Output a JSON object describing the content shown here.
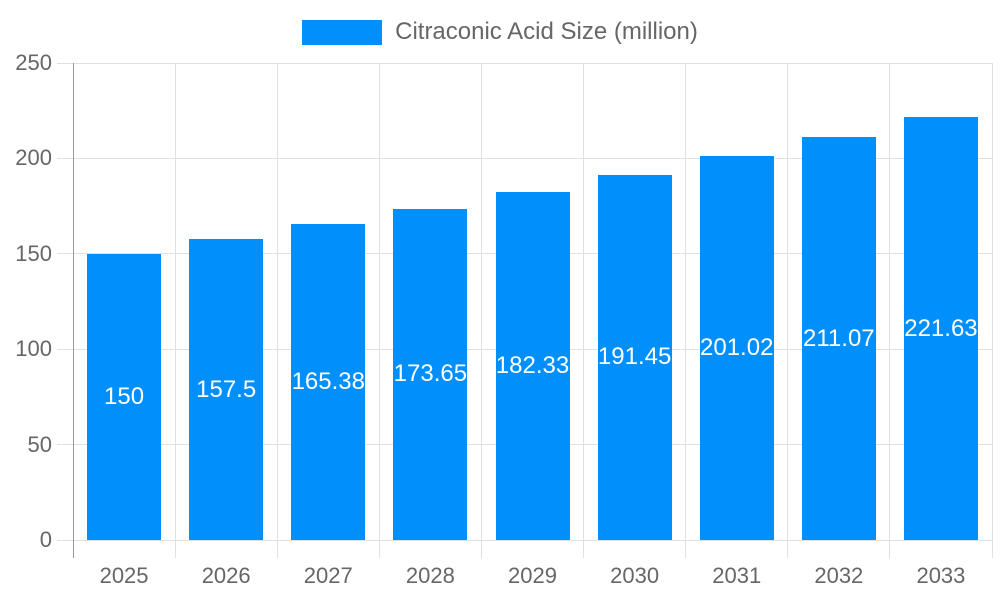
{
  "legend": {
    "label": "Citraconic Acid Size (million)"
  },
  "chart_data": {
    "type": "bar",
    "title": "",
    "categories": [
      "2025",
      "2026",
      "2027",
      "2028",
      "2029",
      "2030",
      "2031",
      "2032",
      "2033"
    ],
    "series": [
      {
        "name": "Citraconic Acid Size (million)",
        "values": [
          150,
          157.5,
          165.38,
          173.65,
          182.33,
          191.45,
          201.02,
          211.07,
          221.63
        ]
      }
    ],
    "data_labels": [
      "150",
      "157.5",
      "165.38",
      "173.65",
      "182.33",
      "191.45",
      "201.02",
      "211.07",
      "221.63"
    ],
    "xlabel": "",
    "ylabel": "",
    "ylim": [
      0,
      250
    ],
    "yticks": [
      0,
      50,
      100,
      150,
      200,
      250
    ],
    "grid": true,
    "legend_position": "top",
    "bar_color": "#008FFB"
  },
  "colors": {
    "bar": "#008FFB",
    "data_label_text": "#ffffff",
    "axis_text": "#666666",
    "legend_text": "#666666",
    "gridline": "#e0e0e0",
    "axis_line": "#999999",
    "background": "#ffffff"
  }
}
